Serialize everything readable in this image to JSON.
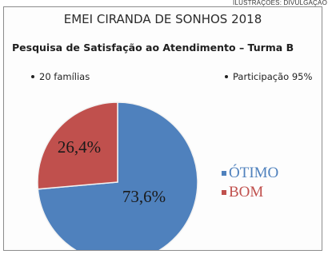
{
  "credit": "ILUSTRAÇÕES: DIVULGAÇÃO",
  "header": {
    "title": "EMEI CIRANDA DE SONHOS 2018",
    "subtitle": "Pesquisa de Satisfação ao Atendimento – Turma B"
  },
  "notes": {
    "left": "20 famílias",
    "right": "Participação 95%"
  },
  "chart_data": {
    "type": "pie",
    "title": "",
    "slices": [
      {
        "label": "ÓTIMO",
        "value": 73.6,
        "value_label": "73,6%",
        "color": "#4f81bd"
      },
      {
        "label": "BOM",
        "value": 26.4,
        "value_label": "26,4%",
        "color": "#c0504d"
      }
    ],
    "legend_placement": "right",
    "label_color": "#1a1a1a"
  }
}
